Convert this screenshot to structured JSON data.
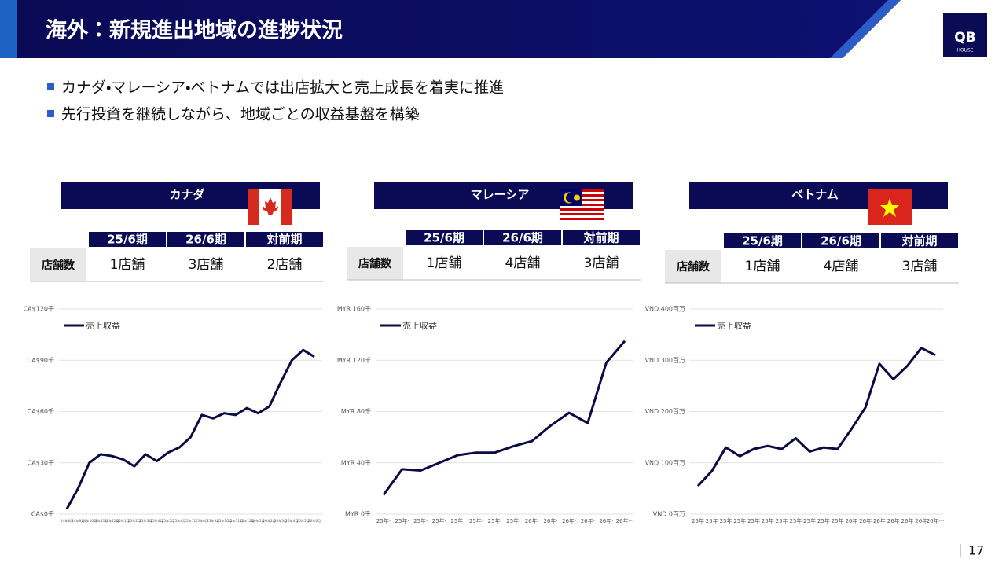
{
  "header": {
    "title": "海外：新規進出地域の進捗状況"
  },
  "bullets": [
    "カナダ・マレーシア・ベトナムでは出店拡大と売上成長を着実に推進",
    "先行投資を継続しながら、地域ごとの収益基盤を構築"
  ],
  "logo": {
    "mark": "QB",
    "name": "HOUSE"
  },
  "page_number": "17",
  "regions": [
    {
      "name": "カナダ",
      "columns": [
        "25/6期",
        "26/6期",
        "対前期"
      ],
      "row_label": "店舗数",
      "cells": [
        "1店舗",
        "3店舗",
        "2店舗"
      ]
    },
    {
      "name": "マレーシア",
      "columns": [
        "25/6期",
        "26/6期",
        "対前期"
      ],
      "row_label": "店舗数",
      "cells": [
        "1店舗",
        "4店舗",
        "3店舗"
      ]
    },
    {
      "name": "ベトナム",
      "columns": [
        "25/6期",
        "26/6期",
        "対前期"
      ],
      "row_label": "店舗数",
      "cells": [
        "1店舗",
        "4店舗",
        "3店舗"
      ]
    }
  ],
  "chart_data": [
    {
      "type": "line",
      "categories": [
        "24年8月",
        "24年9月",
        "24年10月",
        "24年11月",
        "24年12月",
        "25年1月",
        "25年2月",
        "25年3月",
        "25年4月",
        "25年5月",
        "25年6月",
        "25年7月",
        "25年8月",
        "25年9月",
        "25年10月",
        "25年11月",
        "25年12月",
        "26年1月",
        "26年2月",
        "26年3月",
        "26年4月",
        "26年5月",
        "26年6月"
      ],
      "series": [
        {
          "name": "売上収益",
          "color": "#0b0b45",
          "values": [
            3,
            15,
            30,
            35,
            34,
            32,
            28,
            35,
            31,
            36,
            39,
            45,
            58,
            56,
            59,
            58,
            62,
            59,
            63,
            77,
            90,
            96,
            92
          ]
        }
      ],
      "ylim": [
        0,
        120
      ],
      "yticks": [
        {
          "value": 0,
          "label": "CA$0千"
        },
        {
          "value": 30,
          "label": "CA$30千"
        },
        {
          "value": 60,
          "label": "CA$60千"
        },
        {
          "value": 90,
          "label": "CA$90千"
        },
        {
          "value": 120,
          "label": "CA$120千"
        }
      ],
      "grid": true,
      "legend": "upper left"
    },
    {
      "type": "line",
      "categories": [
        "25年·",
        "25年·",
        "25年·",
        "25年·",
        "25年·",
        "25年·",
        "25年·",
        "25年·",
        "26年·",
        "26年·",
        "26年·",
        "26年·",
        "26年·",
        "26年···"
      ],
      "series": [
        {
          "name": "売上収益",
          "color": "#0b0b45",
          "values": [
            15,
            35,
            34,
            40,
            46,
            48,
            48,
            53,
            57,
            69,
            79,
            71,
            118,
            135
          ]
        }
      ],
      "ylim": [
        0,
        160
      ],
      "yticks": [
        {
          "value": 0,
          "label": "MYR 0千"
        },
        {
          "value": 40,
          "label": "MYR 40千"
        },
        {
          "value": 80,
          "label": "MYR 80千"
        },
        {
          "value": 120,
          "label": "MYR 120千"
        },
        {
          "value": 160,
          "label": "MYR 160千"
        }
      ],
      "grid": true,
      "legend": "upper left"
    },
    {
      "type": "line",
      "categories": [
        "25年",
        "25年",
        "25年",
        "25年",
        "25年",
        "25年",
        "25年",
        "25年",
        "25年",
        "25年",
        "25年",
        "26年",
        "26年",
        "26年",
        "26年",
        "26年",
        "26年",
        "26年···"
      ],
      "series": [
        {
          "name": "売上収益",
          "color": "#0b0b45",
          "values": [
            55,
            84,
            130,
            113,
            127,
            133,
            127,
            148,
            122,
            130,
            127,
            166,
            208,
            293,
            263,
            289,
            324,
            310
          ]
        }
      ],
      "ylim": [
        0,
        400
      ],
      "yticks": [
        {
          "value": 0,
          "label": "VND 0百万"
        },
        {
          "value": 100,
          "label": "VND 100百万"
        },
        {
          "value": 200,
          "label": "VND 200百万"
        },
        {
          "value": 300,
          "label": "VND 300百万"
        },
        {
          "value": 400,
          "label": "VND 400百万"
        }
      ],
      "grid": true,
      "legend": "upper left"
    }
  ]
}
